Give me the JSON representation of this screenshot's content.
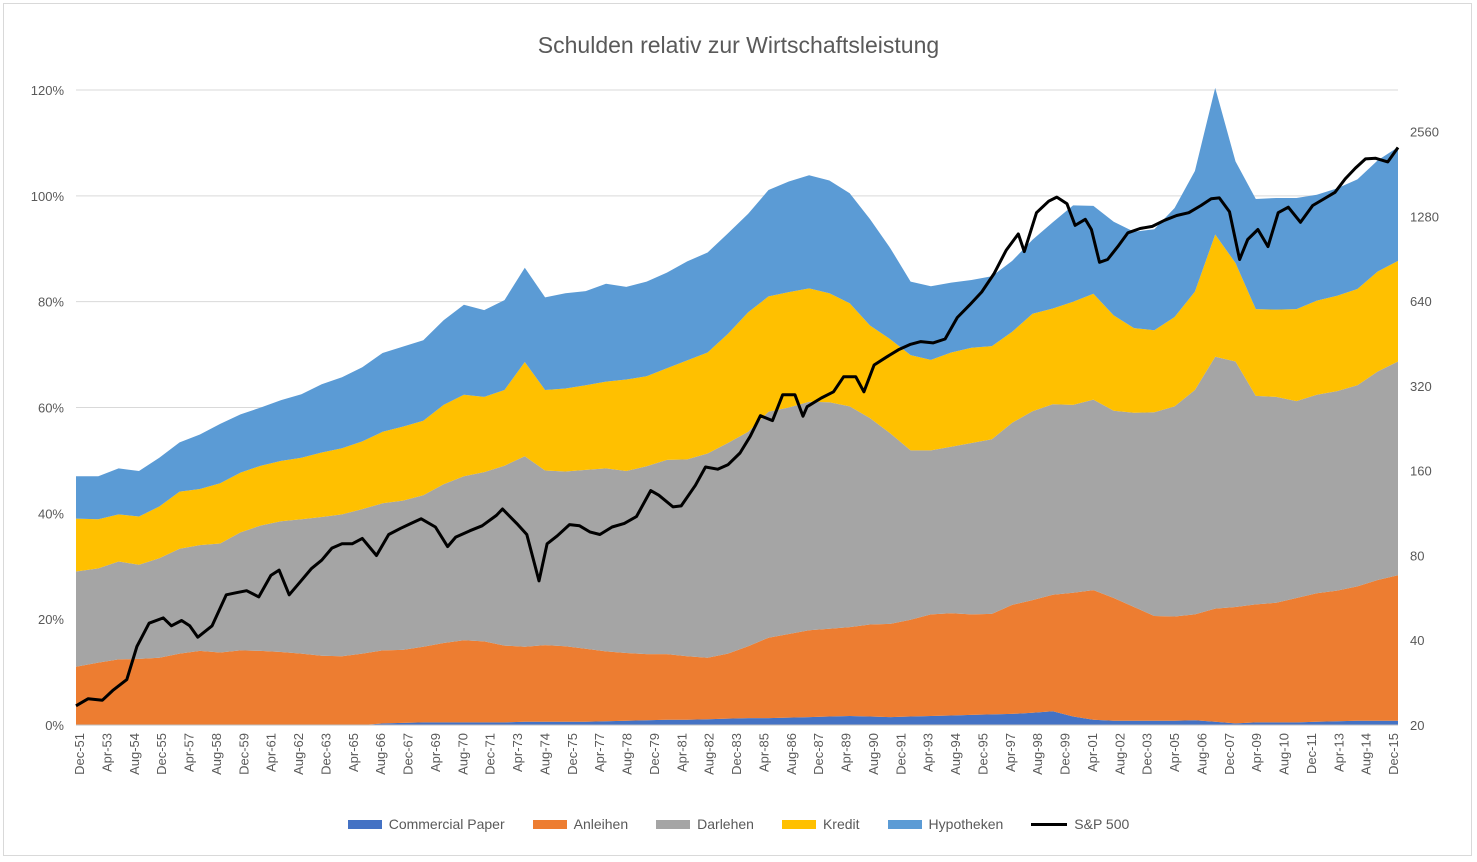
{
  "chart_data": {
    "type": "area",
    "title": "Schulden relativ zur Wirtschaftsleistung",
    "stacked": true,
    "y_left": {
      "ticks": [
        "0%",
        "20%",
        "40%",
        "60%",
        "80%",
        "100%",
        "120%"
      ],
      "range": [
        0,
        120
      ]
    },
    "y_right": {
      "scale": "log",
      "ticks": [
        "20",
        "40",
        "80",
        "160",
        "320",
        "640",
        "1280",
        "2560"
      ],
      "range": [
        20,
        3600
      ]
    },
    "x_tick_labels": [
      "Dec-51",
      "Apr-53",
      "Aug-54",
      "Dec-55",
      "Apr-57",
      "Aug-58",
      "Dec-59",
      "Apr-61",
      "Aug-62",
      "Dec-63",
      "Apr-65",
      "Aug-66",
      "Dec-67",
      "Apr-69",
      "Aug-70",
      "Dec-71",
      "Apr-73",
      "Aug-74",
      "Dec-75",
      "Apr-77",
      "Aug-78",
      "Dec-79",
      "Apr-81",
      "Aug-82",
      "Dec-83",
      "Apr-85",
      "Aug-86",
      "Dec-87",
      "Apr-89",
      "Aug-90",
      "Dec-91",
      "Apr-93",
      "Aug-94",
      "Dec-95",
      "Apr-97",
      "Aug-98",
      "Dec-99",
      "Apr-01",
      "Aug-02",
      "Dec-03",
      "Apr-05",
      "Aug-06",
      "Dec-07",
      "Apr-09",
      "Aug-10",
      "Dec-11",
      "Apr-13",
      "Aug-14",
      "Dec-15"
    ],
    "x_years": [
      1951.9,
      1953,
      1954,
      1955,
      1956,
      1957,
      1958,
      1959,
      1960,
      1961,
      1962,
      1963,
      1964,
      1965,
      1966,
      1967,
      1968,
      1969,
      1970,
      1971,
      1972,
      1973,
      1974,
      1975,
      1976,
      1977,
      1978,
      1979,
      1980,
      1981,
      1982,
      1983,
      1984,
      1985,
      1986,
      1987,
      1988,
      1989,
      1990,
      1991,
      1992,
      1993,
      1994,
      1995,
      1996,
      1997,
      1998,
      1999,
      2000,
      2001,
      2002,
      2003,
      2004,
      2005,
      2006,
      2007,
      2008,
      2009,
      2010,
      2011,
      2012,
      2013,
      2014,
      2015,
      2016,
      2017
    ],
    "grid": true,
    "legend_position": "bottom",
    "series": [
      {
        "name": "Commercial Paper",
        "color": "#4472C4",
        "values": [
          0,
          0,
          0,
          0,
          0,
          0,
          0,
          0,
          0,
          0,
          0,
          0,
          0,
          0,
          0,
          0.3,
          0.4,
          0.5,
          0.5,
          0.5,
          0.5,
          0.5,
          0.6,
          0.6,
          0.6,
          0.6,
          0.7,
          0.8,
          0.9,
          1.0,
          1.0,
          1.1,
          1.2,
          1.3,
          1.3,
          1.4,
          1.5,
          1.6,
          1.7,
          1.6,
          1.5,
          1.6,
          1.7,
          1.8,
          1.9,
          2.0,
          2.1,
          2.3,
          2.6,
          1.6,
          1.0,
          0.8,
          0.8,
          0.8,
          0.8,
          0.9,
          0.6,
          0.3,
          0.5,
          0.5,
          0.5,
          0.6,
          0.7,
          0.8,
          0.8,
          0.8
        ]
      },
      {
        "name": "Anleihen",
        "color": "#ED7D31",
        "values": [
          11,
          11.8,
          12.4,
          12.5,
          12.7,
          13.5,
          14,
          13.7,
          14.1,
          14,
          13.8,
          13.5,
          13.1,
          13,
          13.5,
          13.8,
          13.8,
          14.3,
          15,
          15.5,
          15.3,
          14.5,
          14.2,
          14.5,
          14.3,
          13.8,
          13.2,
          12.8,
          12.5,
          12.4,
          12,
          11.6,
          12.3,
          13.6,
          15.2,
          15.8,
          16.4,
          16.6,
          16.8,
          17.4,
          17.6,
          18.3,
          19.2,
          19.3,
          19.0,
          19.0,
          20.6,
          21.3,
          22,
          23.4,
          24.5,
          23.2,
          21.5,
          19.8,
          19.7,
          20.0,
          21.4,
          22.0,
          22.3,
          22.6,
          23.5,
          24.3,
          24.7,
          25.4,
          26.6,
          27.5
        ]
      },
      {
        "name": "Darlehen",
        "color": "#A5A5A5",
        "values": [
          18,
          17.8,
          18.5,
          17.8,
          18.8,
          19.8,
          20,
          20.6,
          22.3,
          23.7,
          24.7,
          25.4,
          26.2,
          26.8,
          27.3,
          27.8,
          28.2,
          28.6,
          30,
          31,
          32,
          34,
          36,
          33,
          33,
          33.8,
          34.6,
          34.4,
          35.5,
          36.7,
          37.2,
          38.6,
          39.8,
          40.5,
          42.7,
          42.8,
          43.2,
          42.8,
          41.7,
          39,
          36,
          32,
          31,
          31.5,
          32.4,
          33,
          34.4,
          35.7,
          36,
          35.5,
          36,
          35.4,
          36.7,
          38.5,
          39.7,
          42.4,
          47.6,
          46.4,
          39.4,
          38.9,
          37.2,
          37.5,
          37.7,
          38,
          39.4,
          40.4
        ]
      },
      {
        "name": "Kredit",
        "color": "#FFC000",
        "values": [
          10,
          9.3,
          8.9,
          9.1,
          9.8,
          10.8,
          10.6,
          11.4,
          11.3,
          11.3,
          11.4,
          11.6,
          12.2,
          12.5,
          12.8,
          13.5,
          14.0,
          14.1,
          15,
          15.4,
          14.2,
          14.3,
          17.8,
          15.2,
          15.7,
          16,
          16.4,
          17.3,
          17,
          17.3,
          18.7,
          19.1,
          20.6,
          22.6,
          21.8,
          21.8,
          21.4,
          20.6,
          19.5,
          17.5,
          17.8,
          18,
          17.1,
          17.8,
          18.0,
          17.6,
          17.2,
          18.4,
          18.1,
          19.5,
          20,
          18,
          16,
          15.5,
          16.9,
          18.6,
          23.1,
          18.6,
          16.4,
          16.5,
          17.4,
          17.8,
          18,
          18.2,
          18.9,
          19.0
        ]
      },
      {
        "name": "Hypotheken",
        "color": "#5B9BD5",
        "values": [
          8,
          8.1,
          8.7,
          8.6,
          9.2,
          9.3,
          10.3,
          11.2,
          11,
          11,
          11.5,
          12,
          12.9,
          13.4,
          14,
          14.9,
          15.1,
          15.2,
          16,
          17,
          16.4,
          17,
          17.8,
          17.5,
          18,
          17.8,
          18.5,
          17.5,
          17.9,
          18.1,
          18.7,
          18.9,
          19.0,
          18.6,
          20.1,
          20.9,
          21.4,
          21.3,
          20.8,
          20.1,
          17.2,
          13.9,
          13.9,
          13.2,
          12.8,
          13.2,
          13.4,
          14.0,
          16.3,
          18.2,
          16.6,
          17.7,
          18.2,
          19.1,
          20.6,
          22.8,
          27.7,
          19.2,
          20.8,
          21.1,
          21.0,
          20.0,
          20.3,
          20.7,
          21.0,
          21.5
        ]
      }
    ],
    "line_series": {
      "name": "S&P 500",
      "axis": "right",
      "color": "#000000",
      "x": [
        1951.9,
        1952.5,
        1953.2,
        1953.7,
        1954.4,
        1954.9,
        1955.5,
        1956.2,
        1956.6,
        1957.1,
        1957.5,
        1957.9,
        1958.6,
        1959.3,
        1959.8,
        1960.3,
        1960.9,
        1961.5,
        1961.9,
        1962.4,
        1962.9,
        1963.5,
        1964.0,
        1964.5,
        1965.0,
        1965.5,
        1966.0,
        1966.7,
        1967.3,
        1967.9,
        1968.4,
        1968.9,
        1969.6,
        1970.2,
        1970.6,
        1971.3,
        1971.9,
        1972.6,
        1972.9,
        1973.6,
        1974.1,
        1974.7,
        1975.1,
        1975.6,
        1976.2,
        1976.7,
        1977.2,
        1977.7,
        1978.3,
        1978.9,
        1979.5,
        1980.2,
        1980.6,
        1981.3,
        1981.7,
        1982.4,
        1982.9,
        1983.5,
        1984.0,
        1984.6,
        1985.1,
        1985.6,
        1986.2,
        1986.7,
        1987.3,
        1987.7,
        1987.9,
        1988.6,
        1989.2,
        1989.7,
        1990.3,
        1990.7,
        1991.2,
        1991.8,
        1992.4,
        1993.0,
        1993.5,
        1994.1,
        1994.7,
        1995.3,
        1995.9,
        1996.5,
        1997.1,
        1997.7,
        1998.3,
        1998.6,
        1999.2,
        1999.8,
        2000.2,
        2000.7,
        2001.1,
        2001.6,
        2001.9,
        2002.3,
        2002.7,
        2003.2,
        2003.7,
        2004.3,
        2004.9,
        2005.5,
        2006.1,
        2006.7,
        2007.3,
        2007.8,
        2008.2,
        2008.7,
        2009.2,
        2009.6,
        2010.1,
        2010.6,
        2011.1,
        2011.6,
        2012.2,
        2012.8,
        2013.3,
        2013.9,
        2014.4,
        2014.9,
        2015.4,
        2015.9,
        2016.5,
        2017.0
      ],
      "values": [
        23.4,
        24.8,
        24.5,
        26.5,
        29,
        38,
        46,
        48,
        45,
        47,
        45,
        41,
        45,
        58,
        59,
        60,
        57,
        68,
        71,
        58,
        64,
        72,
        77,
        85,
        88,
        88,
        92,
        80,
        95,
        100,
        104,
        108,
        101,
        86,
        93,
        98,
        102,
        111,
        117,
        104,
        95,
        65,
        88,
        94,
        103,
        102,
        97,
        95,
        101,
        104,
        110,
        136,
        131,
        119,
        120,
        142,
        165,
        162,
        168,
        185,
        212,
        251,
        241,
        298,
        298,
        250,
        270,
        290,
        305,
        345,
        345,
        305,
        380,
        405,
        430,
        450,
        460,
        455,
        470,
        560,
        620,
        690,
        800,
        970,
        1110,
        960,
        1320,
        1450,
        1500,
        1420,
        1190,
        1250,
        1150,
        880,
        900,
        1000,
        1120,
        1160,
        1180,
        1240,
        1290,
        1320,
        1400,
        1480,
        1490,
        1330,
        900,
        1060,
        1150,
        1000,
        1320,
        1380,
        1220,
        1400,
        1470,
        1560,
        1740,
        1900,
        2050,
        2060,
        2000,
        2250
      ]
    }
  },
  "legend": {
    "cp": "Commercial Paper",
    "anl": "Anleihen",
    "dar": "Darlehen",
    "kre": "Kredit",
    "hyp": "Hypotheken",
    "sp": "S&P 500"
  }
}
